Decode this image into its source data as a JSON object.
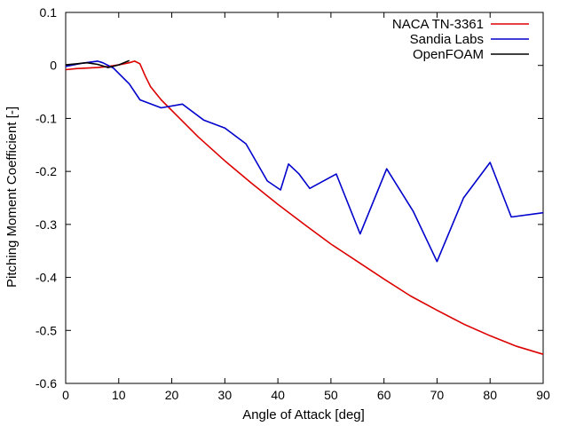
{
  "chart_data": {
    "type": "line",
    "title": "",
    "xlabel": "Angle of Attack [deg]",
    "ylabel": "Pitching Moment Coefficient [-]",
    "xlim": [
      0,
      90
    ],
    "ylim": [
      -0.6,
      0.1
    ],
    "xticks": [
      0,
      10,
      20,
      30,
      40,
      50,
      60,
      70,
      80,
      90
    ],
    "yticks": [
      -0.6,
      -0.5,
      -0.4,
      -0.3,
      -0.2,
      -0.1,
      0,
      0.1
    ],
    "xtick_labels": [
      "0",
      "10",
      "20",
      "30",
      "40",
      "50",
      "60",
      "70",
      "80",
      "90"
    ],
    "ytick_labels": [
      "-0.6",
      "-0.5",
      "-0.4",
      "-0.3",
      "-0.2",
      "-0.1",
      "0",
      "0.1"
    ],
    "grid": false,
    "legend_position": "top-right",
    "series": [
      {
        "name": "NACA TN-3361",
        "color": "#dd0000",
        "x": [
          0,
          2,
          4,
          6,
          8,
          10,
          12,
          13,
          14,
          15,
          16,
          18,
          20,
          25,
          30,
          35,
          40,
          45,
          50,
          55,
          60,
          65,
          70,
          75,
          80,
          85,
          90
        ],
        "y": [
          -0.008,
          -0.006,
          -0.005,
          -0.004,
          -0.002,
          0.001,
          0.005,
          0.008,
          0.003,
          -0.02,
          -0.04,
          -0.065,
          -0.085,
          -0.135,
          -0.18,
          -0.222,
          -0.262,
          -0.3,
          -0.337,
          -0.37,
          -0.403,
          -0.435,
          -0.462,
          -0.488,
          -0.51,
          -0.53,
          -0.545
        ]
      },
      {
        "name": "Sandia Labs",
        "color": "#0000cc",
        "x": [
          0,
          3,
          6,
          7,
          9,
          10,
          12,
          14,
          18,
          22,
          26,
          30,
          34,
          38,
          40.5,
          42,
          44,
          46,
          51,
          55.5,
          60.5,
          65.5,
          70,
          75,
          80,
          84,
          90
        ],
        "y": [
          -0.002,
          0.004,
          0.008,
          0.005,
          -0.005,
          -0.015,
          -0.035,
          -0.065,
          -0.08,
          -0.073,
          -0.103,
          -0.118,
          -0.148,
          -0.218,
          -0.235,
          -0.186,
          -0.205,
          -0.232,
          -0.205,
          -0.318,
          -0.195,
          -0.275,
          -0.37,
          -0.25,
          -0.183,
          -0.286,
          -0.278
        ]
      },
      {
        "name": "OpenFOAM",
        "color": "#000000",
        "x": [
          0,
          2,
          4,
          6,
          8,
          10,
          12
        ],
        "y": [
          0.001,
          0.003,
          0.005,
          0.002,
          -0.004,
          0.001,
          0.009
        ]
      }
    ]
  }
}
